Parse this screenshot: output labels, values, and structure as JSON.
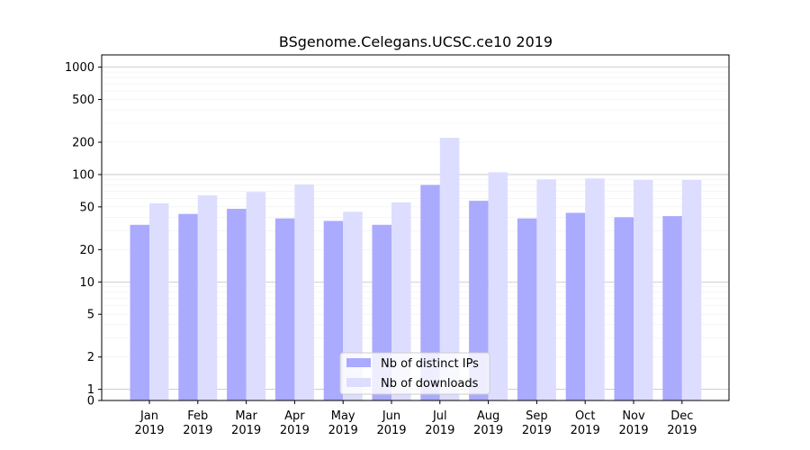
{
  "chart_data": {
    "type": "bar",
    "title": "BSgenome.Celegans.UCSC.ce10 2019",
    "xlabel": "",
    "ylabel": "",
    "y_scale": "symlog",
    "ylim": [
      0,
      1300
    ],
    "grid": true,
    "legend_position": "bottom-center",
    "categories": [
      {
        "month": "Jan",
        "year": "2019"
      },
      {
        "month": "Feb",
        "year": "2019"
      },
      {
        "month": "Mar",
        "year": "2019"
      },
      {
        "month": "Apr",
        "year": "2019"
      },
      {
        "month": "May",
        "year": "2019"
      },
      {
        "month": "Jun",
        "year": "2019"
      },
      {
        "month": "Jul",
        "year": "2019"
      },
      {
        "month": "Aug",
        "year": "2019"
      },
      {
        "month": "Sep",
        "year": "2019"
      },
      {
        "month": "Oct",
        "year": "2019"
      },
      {
        "month": "Nov",
        "year": "2019"
      },
      {
        "month": "Dec",
        "year": "2019"
      }
    ],
    "series": [
      {
        "name": "Nb of distinct IPs",
        "color": "#aaaaff",
        "values": [
          34,
          43,
          48,
          39,
          37,
          34,
          80,
          57,
          39,
          44,
          40,
          41
        ]
      },
      {
        "name": "Nb of downloads",
        "color": "#ddddff",
        "values": [
          54,
          64,
          69,
          81,
          45,
          55,
          220,
          105,
          90,
          92,
          89,
          89
        ]
      }
    ],
    "y_ticks": [
      0,
      1,
      2,
      5,
      10,
      20,
      50,
      100,
      200,
      500,
      1000
    ],
    "y_tick_labels": [
      "0",
      "1",
      "2",
      "5",
      "10",
      "20",
      "50",
      "100",
      "200",
      "500",
      "1000"
    ]
  }
}
